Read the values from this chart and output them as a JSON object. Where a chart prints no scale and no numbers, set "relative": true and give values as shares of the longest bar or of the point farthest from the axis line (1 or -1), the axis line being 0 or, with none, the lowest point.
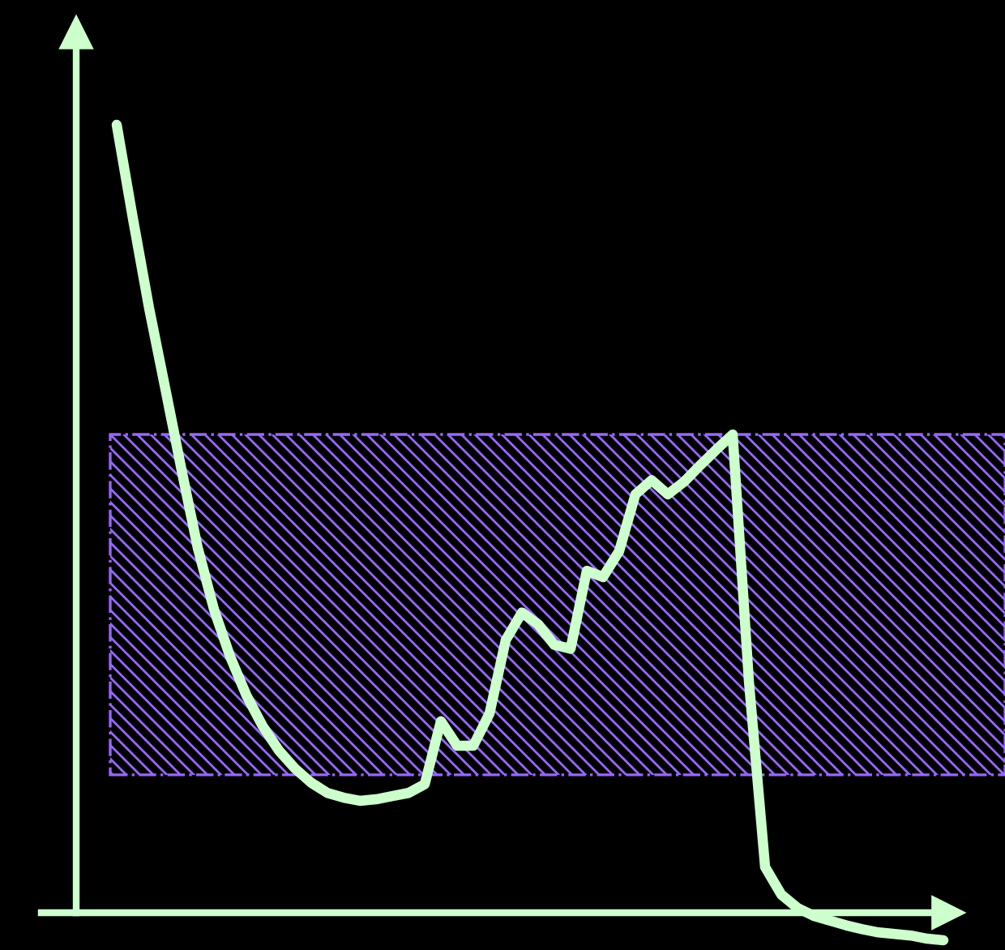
{
  "chart_data": {
    "type": "line",
    "relative": true,
    "color": "#ccffcc",
    "categories": [
      null,
      null,
      null,
      null,
      null,
      null,
      null,
      null,
      null,
      null,
      null,
      null,
      null,
      null,
      null,
      null,
      null,
      null,
      null,
      null,
      null,
      null,
      null,
      null,
      null,
      null,
      null,
      null,
      null,
      null,
      null,
      null,
      null,
      null,
      null,
      null,
      null,
      null,
      null,
      null,
      null,
      null,
      null,
      null,
      null,
      null,
      null,
      null,
      null,
      null,
      null,
      null
    ],
    "values": [
      1.0,
      0.881,
      0.767,
      0.665,
      0.562,
      0.463,
      0.385,
      0.325,
      0.276,
      0.237,
      0.206,
      0.183,
      0.165,
      0.152,
      0.146,
      0.142,
      0.144,
      0.148,
      0.152,
      0.163,
      0.243,
      0.212,
      0.212,
      0.253,
      0.346,
      0.381,
      0.366,
      0.34,
      0.335,
      0.434,
      0.426,
      0.459,
      0.531,
      0.549,
      0.531,
      0.547,
      0.568,
      0.588,
      0.607,
      0.294,
      0.058,
      0.023,
      0.006,
      -0.004,
      -0.01,
      -0.016,
      -0.021,
      -0.025,
      -0.027,
      -0.029,
      -0.033,
      -0.035
    ],
    "ref_lines": [
      {
        "axis": "y",
        "value": 0,
        "color": "#ccffcc"
      }
    ],
    "bands": [
      {
        "axis": "y",
        "from": 0.175,
        "to": 0.607,
        "color": "#9966ff"
      }
    ],
    "marker": "none",
    "line_style": "solid"
  }
}
